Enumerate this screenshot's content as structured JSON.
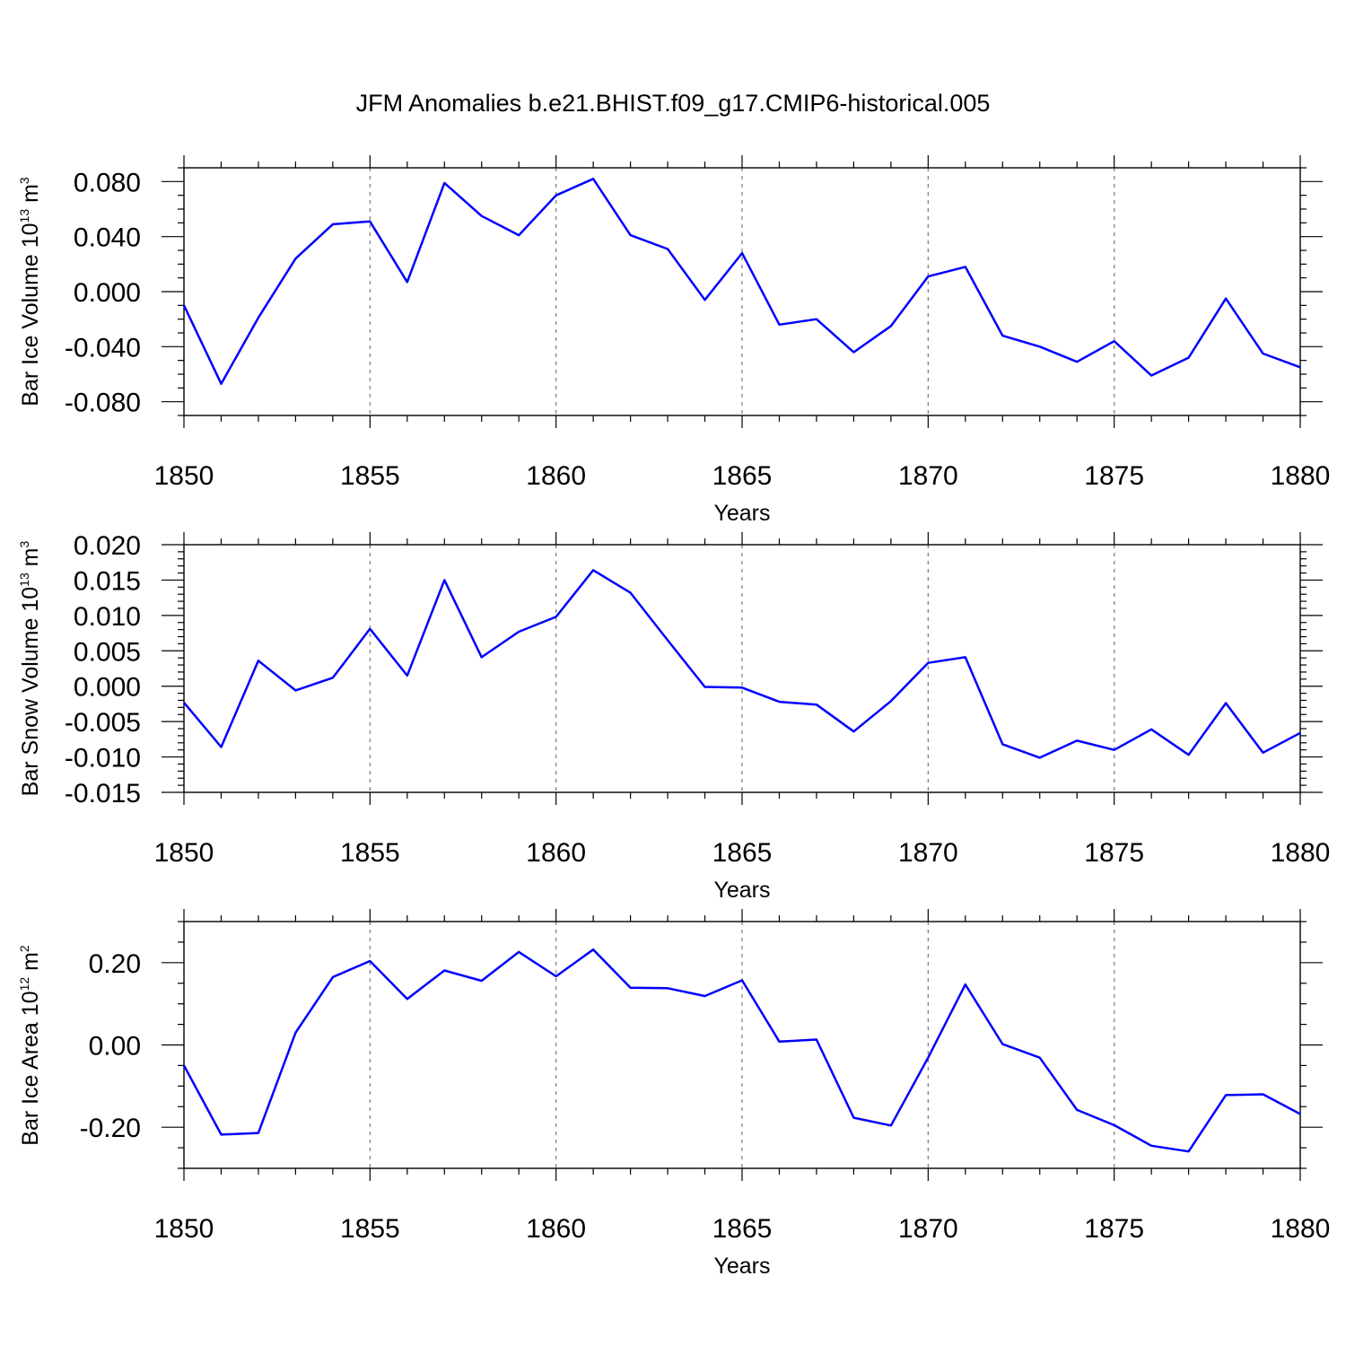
{
  "title": "JFM Anomalies b.e21.BHIST.f09_g17.CMIP6-historical.005",
  "chart_data": [
    {
      "type": "line",
      "ylabel": {
        "main": "Bar Ice Volume 10",
        "exp1": "13",
        "mid": " m",
        "exp2": "3"
      },
      "xlabel": "Years",
      "xlim": [
        1850,
        1880
      ],
      "xticks": [
        1850,
        1855,
        1860,
        1865,
        1870,
        1875,
        1880
      ],
      "xtick_labels": [
        "1850",
        "1855",
        "1860",
        "1865",
        "1870",
        "1875",
        "1880"
      ],
      "ylim": [
        -0.09,
        0.09
      ],
      "yticks": [
        -0.08,
        -0.04,
        0.0,
        0.04,
        0.08
      ],
      "ytick_labels": [
        "-0.080",
        "-0.040",
        "0.000",
        "0.040",
        "0.080"
      ],
      "minor_step": 0.01,
      "grid_x": [
        1855,
        1860,
        1865,
        1870,
        1875
      ],
      "series_color": "#0000ff",
      "x": [
        1850,
        1851,
        1852,
        1853,
        1854,
        1855,
        1856,
        1857,
        1858,
        1859,
        1860,
        1861,
        1862,
        1863,
        1864,
        1865,
        1866,
        1867,
        1868,
        1869,
        1870,
        1871,
        1872,
        1873,
        1874,
        1875,
        1876,
        1877,
        1878,
        1879,
        1880
      ],
      "values": [
        -0.01,
        -0.067,
        -0.019,
        0.024,
        0.049,
        0.051,
        0.007,
        0.079,
        0.055,
        0.041,
        0.07,
        0.082,
        0.041,
        0.031,
        -0.006,
        0.028,
        -0.024,
        -0.02,
        -0.044,
        -0.025,
        0.011,
        0.018,
        -0.032,
        -0.04,
        -0.051,
        -0.036,
        -0.061,
        -0.048,
        -0.005,
        -0.045,
        -0.055
      ]
    },
    {
      "type": "line",
      "ylabel": {
        "main": "Bar Snow Volume 10",
        "exp1": "13",
        "mid": " m",
        "exp2": "3"
      },
      "xlabel": "Years",
      "xlim": [
        1850,
        1880
      ],
      "xticks": [
        1850,
        1855,
        1860,
        1865,
        1870,
        1875,
        1880
      ],
      "xtick_labels": [
        "1850",
        "1855",
        "1860",
        "1865",
        "1870",
        "1875",
        "1880"
      ],
      "ylim": [
        -0.015,
        0.02
      ],
      "yticks": [
        -0.015,
        -0.01,
        -0.005,
        0.0,
        0.005,
        0.01,
        0.015,
        0.02
      ],
      "ytick_labels": [
        "-0.015",
        "-0.010",
        "-0.005",
        "0.000",
        "0.005",
        "0.010",
        "0.015",
        "0.020"
      ],
      "minor_step": 0.001,
      "grid_x": [
        1855,
        1860,
        1865,
        1870,
        1875
      ],
      "series_color": "#0000ff",
      "x": [
        1850,
        1851,
        1852,
        1853,
        1854,
        1855,
        1856,
        1857,
        1858,
        1859,
        1860,
        1861,
        1862,
        1863,
        1864,
        1865,
        1866,
        1867,
        1868,
        1869,
        1870,
        1871,
        1872,
        1873,
        1874,
        1875,
        1876,
        1877,
        1878,
        1879,
        1880
      ],
      "values": [
        -0.0023,
        -0.0086,
        0.0036,
        -0.0006,
        0.0012,
        0.0081,
        0.0015,
        0.015,
        0.0041,
        0.0077,
        0.0098,
        0.0164,
        0.0132,
        0.0065,
        -0.0001,
        -0.0002,
        -0.0022,
        -0.0026,
        -0.0064,
        -0.0021,
        0.0033,
        0.0041,
        -0.0082,
        -0.0101,
        -0.0077,
        -0.009,
        -0.0061,
        -0.0097,
        -0.0024,
        -0.0094,
        -0.0066
      ]
    },
    {
      "type": "line",
      "ylabel": {
        "main": "Bar Ice Area 10",
        "exp1": "12",
        "mid": " m",
        "exp2": "2"
      },
      "xlabel": "Years",
      "xlim": [
        1850,
        1880
      ],
      "xticks": [
        1850,
        1855,
        1860,
        1865,
        1870,
        1875,
        1880
      ],
      "xtick_labels": [
        "1850",
        "1855",
        "1860",
        "1865",
        "1870",
        "1875",
        "1880"
      ],
      "ylim": [
        -0.3,
        0.3
      ],
      "yticks": [
        -0.2,
        0.0,
        0.2
      ],
      "ytick_labels": [
        "-0.20",
        "0.00",
        "0.20"
      ],
      "minor_step": 0.05,
      "grid_x": [
        1855,
        1860,
        1865,
        1870,
        1875
      ],
      "series_color": "#0000ff",
      "x": [
        1850,
        1851,
        1852,
        1853,
        1854,
        1855,
        1856,
        1857,
        1858,
        1859,
        1860,
        1861,
        1862,
        1863,
        1864,
        1865,
        1866,
        1867,
        1868,
        1869,
        1870,
        1871,
        1872,
        1873,
        1874,
        1875,
        1876,
        1877,
        1878,
        1879,
        1880
      ],
      "values": [
        -0.05,
        -0.218,
        -0.214,
        0.03,
        0.165,
        0.204,
        0.112,
        0.181,
        0.156,
        0.226,
        0.167,
        0.232,
        0.139,
        0.138,
        0.119,
        0.157,
        0.008,
        0.013,
        -0.177,
        -0.196,
        -0.031,
        0.147,
        0.002,
        -0.031,
        -0.158,
        -0.195,
        -0.245,
        -0.259,
        -0.122,
        -0.12,
        -0.168
      ]
    }
  ]
}
